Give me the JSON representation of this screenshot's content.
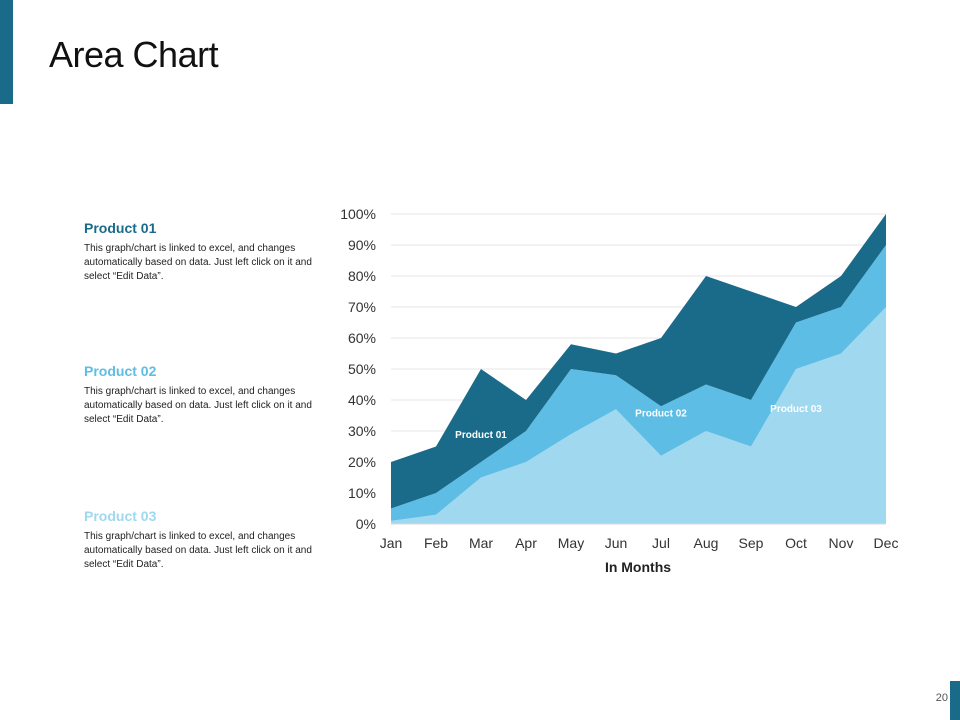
{
  "slide": {
    "title": "Area Chart",
    "page_number": "20",
    "accent_color": "#1a6b8a"
  },
  "legend": [
    {
      "title": "Product 01",
      "description": "This graph/chart is linked to excel, and changes automatically based on data. Just left click on it and select “Edit Data”.",
      "color": "#1a6b8a"
    },
    {
      "title": "Product 02",
      "description": "This graph/chart is linked to excel, and changes automatically based on data. Just left click on it and select “Edit Data”.",
      "color": "#5ebde4"
    },
    {
      "title": "Product 03",
      "description": "This graph/chart is linked to excel, and changes automatically based on data. Just left click on it and select “Edit Data”.",
      "color": "#9fd8ef"
    }
  ],
  "chart_data": {
    "type": "area",
    "stacked": true,
    "title": "",
    "xlabel": "In Months",
    "ylabel": "",
    "categories": [
      "Jan",
      "Feb",
      "Mar",
      "Apr",
      "May",
      "Jun",
      "Jul",
      "Aug",
      "Sep",
      "Oct",
      "Nov",
      "Dec"
    ],
    "ylim": [
      0,
      100
    ],
    "yticks": [
      0,
      10,
      20,
      30,
      40,
      50,
      60,
      70,
      80,
      90,
      100
    ],
    "ytick_format": "percent",
    "grid": true,
    "series": [
      {
        "name": "Product 03",
        "color": "#9fd8ef",
        "values": [
          1,
          3,
          15,
          20,
          29,
          37,
          22,
          30,
          25,
          50,
          55,
          70
        ]
      },
      {
        "name": "Product 02",
        "color": "#5ebde4",
        "values": [
          4,
          7,
          5,
          10,
          21,
          11,
          16,
          15,
          15,
          15,
          15,
          20
        ]
      },
      {
        "name": "Product 01",
        "color": "#1a6b8a",
        "values": [
          15,
          15,
          30,
          10,
          8,
          7,
          22,
          35,
          35,
          5,
          10,
          10
        ]
      }
    ],
    "series_labels": [
      {
        "name": "Product 01",
        "text": "Product 01",
        "month": "Mar",
        "y": 29
      },
      {
        "name": "Product 02",
        "text": "Product 02",
        "month": "Jul",
        "y": 36
      },
      {
        "name": "Product 03",
        "text": "Product 03",
        "month": "Oct",
        "y": 37.5
      }
    ]
  }
}
